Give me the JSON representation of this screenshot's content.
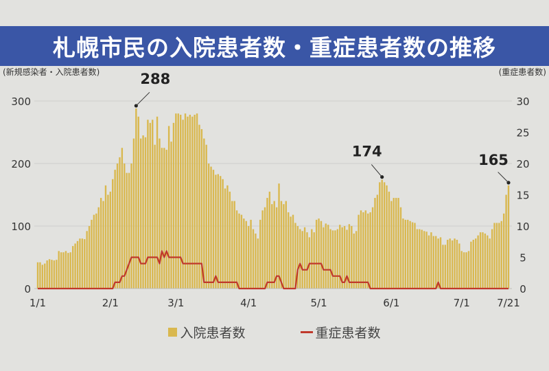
{
  "header": {
    "title": "札幌市民の入院患者数・重症患者数の推移"
  },
  "chart_data": {
    "type": "bar",
    "title": "札幌市民の入院患者数・重症患者数の推移",
    "ylabel": "(新規感染者・入院患者数)",
    "ylabel_right": "(重症患者数)",
    "ylim": [
      0,
      300
    ],
    "ylim_right": [
      0,
      30
    ],
    "yticks": [
      "0",
      "100",
      "200",
      "300"
    ],
    "yticks_right": [
      "0",
      "5",
      "10",
      "15",
      "20",
      "25",
      "30"
    ],
    "xticks": [
      {
        "label": "1/1",
        "day": 0
      },
      {
        "label": "2/1",
        "day": 31
      },
      {
        "label": "3/1",
        "day": 59
      },
      {
        "label": "4/1",
        "day": 90
      },
      {
        "label": "5/1",
        "day": 120
      },
      {
        "label": "6/1",
        "day": 151
      },
      {
        "label": "7/1",
        "day": 181
      },
      {
        "label": "7/21",
        "day": 201
      }
    ],
    "grid": true,
    "legend_position": "bottom",
    "series": [
      {
        "name": "入院患者数",
        "type": "bar",
        "axis": "left",
        "color": "#d9b84f",
        "values": [
          42,
          42,
          38,
          40,
          45,
          47,
          46,
          45,
          46,
          60,
          58,
          58,
          60,
          57,
          58,
          68,
          72,
          76,
          80,
          80,
          79,
          92,
          100,
          110,
          118,
          120,
          130,
          145,
          140,
          165,
          150,
          155,
          175,
          190,
          200,
          210,
          225,
          200,
          185,
          185,
          200,
          240,
          288,
          275,
          240,
          245,
          242,
          270,
          265,
          270,
          230,
          275,
          240,
          225,
          225,
          222,
          260,
          235,
          265,
          280,
          280,
          278,
          270,
          280,
          275,
          278,
          275,
          278,
          280,
          262,
          255,
          240,
          230,
          200,
          195,
          190,
          182,
          183,
          180,
          175,
          160,
          165,
          155,
          140,
          140,
          125,
          120,
          118,
          112,
          108,
          100,
          110,
          95,
          88,
          80,
          110,
          125,
          130,
          145,
          155,
          135,
          140,
          130,
          168,
          140,
          135,
          140,
          122,
          115,
          118,
          105,
          100,
          95,
          92,
          98,
          90,
          82,
          95,
          90,
          110,
          112,
          108,
          98,
          104,
          102,
          95,
          93,
          93,
          95,
          102,
          98,
          100,
          94,
          103,
          100,
          88,
          92,
          118,
          125,
          122,
          125,
          120,
          122,
          130,
          145,
          150,
          170,
          174,
          170,
          165,
          155,
          140,
          145,
          145,
          145,
          130,
          112,
          110,
          110,
          108,
          106,
          105,
          95,
          95,
          94,
          92,
          91,
          85,
          90,
          84,
          84,
          80,
          82,
          70,
          70,
          78,
          80,
          77,
          80,
          78,
          72,
          60,
          58,
          58,
          60,
          75,
          78,
          80,
          85,
          90,
          90,
          88,
          85,
          80,
          95,
          105,
          105,
          105,
          108,
          120,
          150,
          165
        ]
      },
      {
        "name": "重症患者数",
        "type": "line",
        "axis": "right",
        "color": "#c0392b",
        "values": [
          0,
          0,
          0,
          0,
          0,
          0,
          0,
          0,
          0,
          0,
          0,
          0,
          0,
          0,
          0,
          0,
          0,
          0,
          0,
          0,
          0,
          0,
          0,
          0,
          0,
          0,
          0,
          0,
          0,
          0,
          0,
          0,
          0,
          1,
          1,
          1,
          2,
          2,
          3,
          4,
          5,
          5,
          5,
          5,
          4,
          4,
          4,
          5,
          5,
          5,
          5,
          5,
          4,
          6,
          5,
          6,
          5,
          5,
          5,
          5,
          5,
          5,
          4,
          4,
          4,
          4,
          4,
          4,
          4,
          4,
          4,
          1,
          1,
          1,
          1,
          1,
          2,
          1,
          1,
          1,
          1,
          1,
          1,
          1,
          1,
          1,
          0,
          0,
          0,
          0,
          0,
          0,
          0,
          0,
          0,
          0,
          0,
          0,
          1,
          1,
          1,
          1,
          2,
          2,
          1,
          0,
          0,
          0,
          0,
          0,
          0,
          3,
          4,
          3,
          3,
          3,
          4,
          4,
          4,
          4,
          4,
          4,
          3,
          3,
          3,
          3,
          2,
          2,
          2,
          2,
          1,
          1,
          2,
          1,
          1,
          1,
          1,
          1,
          1,
          1,
          1,
          1,
          0,
          0,
          0,
          0,
          0,
          0,
          0,
          0,
          0,
          0,
          0,
          0,
          0,
          0,
          0,
          0,
          0,
          0,
          0,
          0,
          0,
          0,
          0,
          0,
          0,
          0,
          0,
          0,
          0,
          1,
          0,
          0,
          0,
          0,
          0,
          0,
          0,
          0,
          0,
          0,
          0,
          0,
          0,
          0,
          0,
          0,
          0,
          0,
          0,
          0,
          0,
          0,
          0,
          0,
          0,
          0,
          0,
          0,
          0,
          0
        ]
      }
    ],
    "annotations": [
      {
        "text": "288",
        "day": 42,
        "value": 288
      },
      {
        "text": "174",
        "day": 147,
        "value": 174
      },
      {
        "text": "165",
        "day": 201,
        "value": 165
      }
    ]
  }
}
